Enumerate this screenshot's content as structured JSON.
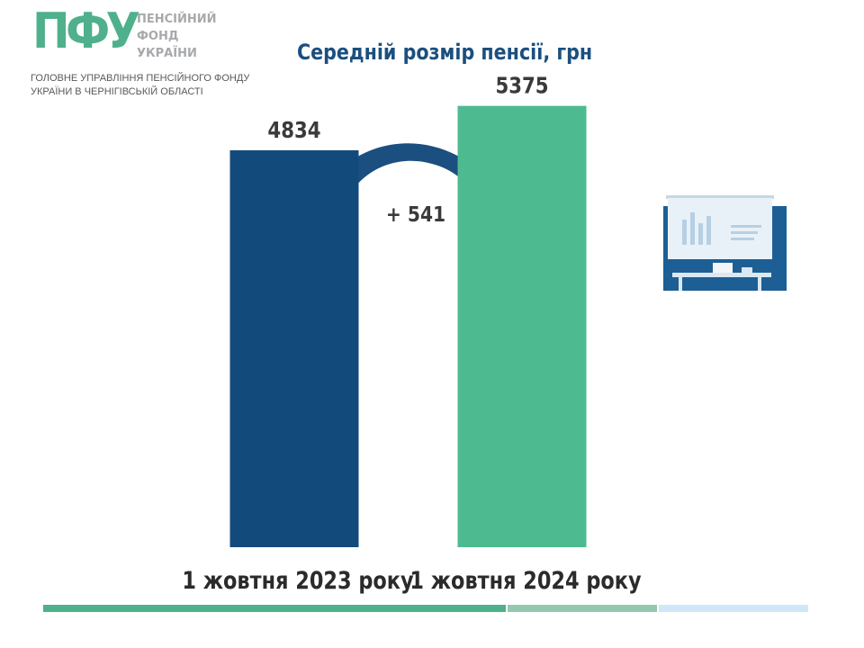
{
  "logo": {
    "mark": "ПФУ",
    "text_lines": [
      "ПЕНСІЙНИЙ",
      "ФОНД",
      "УКРАЇНИ"
    ]
  },
  "organization": {
    "lines": [
      "ГОЛОВНЕ УПРАВЛІННЯ ПЕНСІЙНОГО ФОНДУ",
      "УКРАЇНИ В ЧЕРНІГІВСЬКІЙ ОБЛАСТІ"
    ]
  },
  "colors": {
    "brand_green": "#4fb08c",
    "navy": "#134a7c",
    "teal": "#4dbb8f",
    "arrow": "#1b4f7f",
    "footer": [
      "#4fb08c",
      "#93c9ae",
      "#cfe7f8"
    ]
  },
  "chart_data": {
    "type": "bar",
    "title": "Середній розмір пенсії, грн",
    "categories": [
      "1 жовтня 2023 року",
      "1 жовтня 2024 року"
    ],
    "values": [
      4834,
      5375
    ],
    "data_labels": [
      "4834",
      "5375"
    ],
    "bar_colors": [
      "#134a7c",
      "#4dbb8f"
    ],
    "annotation": "+ 541",
    "ylim": [
      0,
      6500
    ],
    "grid": false,
    "legend": "none"
  },
  "illustration": {
    "icon": "presentation-board-icon"
  }
}
